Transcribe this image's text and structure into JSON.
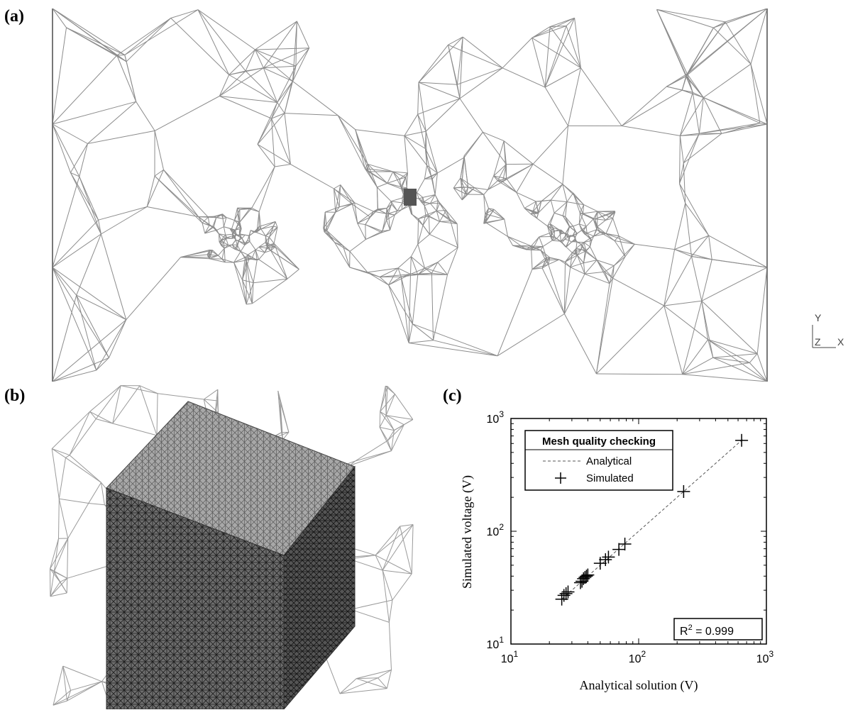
{
  "panels": {
    "a": {
      "label": "(a)"
    },
    "b": {
      "label": "(b)"
    },
    "c": {
      "label": "(c)"
    }
  },
  "axis_triad": {
    "y": "Y",
    "z": "Z",
    "x": "X"
  },
  "colors": {
    "mesh": "#8c8c8c",
    "mesh_dense": "#3a3a3a",
    "ink": "#000000"
  },
  "chart_data": {
    "type": "scatter",
    "xlabel": "Analytical solution (V)",
    "ylabel": "Simulated voltage (V)",
    "xscale": "log",
    "yscale": "log",
    "xlim": [
      10,
      1000
    ],
    "ylim": [
      10,
      1000
    ],
    "xticks": [
      "10^1",
      "10^2",
      "10^3"
    ],
    "yticks": [
      "10^1",
      "10^2",
      "10^3"
    ],
    "grid": false,
    "legend": {
      "title": "Mesh quality checking",
      "placement": "top-left",
      "entries": [
        "Analytical",
        "Simulated"
      ]
    },
    "annotation": {
      "prefix": "R",
      "sup": "2",
      "suffix": " = 0.999"
    },
    "series": [
      {
        "name": "Analytical",
        "style": "dashed-line",
        "x": [
          25,
          650
        ],
        "y": [
          25,
          650
        ]
      },
      {
        "name": "Simulated",
        "style": "plus-marker",
        "x": [
          25,
          26,
          27,
          28,
          35,
          36,
          37,
          38,
          39,
          40,
          50,
          55,
          58,
          70,
          78,
          225,
          640
        ],
        "y": [
          25,
          27,
          28,
          29,
          35,
          36,
          38,
          39,
          40,
          41,
          52,
          56,
          59,
          69,
          77,
          225,
          640
        ]
      }
    ]
  }
}
